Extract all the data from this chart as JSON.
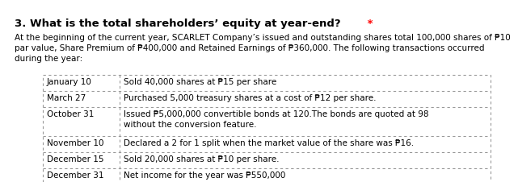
{
  "title": "3. What is the total shareholders’ equity at year-end?",
  "title_star": " *",
  "intro_lines": [
    "At the beginning of the current year, SCARLET Company’s issued and outstanding shares total 100,000 shares of ₱10",
    "par value, Share Premium of ₱400,000 and Retained Earnings of ₱360,000. The following transactions occurred",
    "during the year:"
  ],
  "table_rows": [
    [
      "January 10",
      "Sold 40,000 shares at ₱15 per share"
    ],
    [
      "March 27",
      "Purchased 5,000 treasury shares at a cost of ₱12 per share."
    ],
    [
      "October 31",
      "Issued ₱5,000,000 convertible bonds at 120.The bonds are quoted at 98\nwithout the conversion feature."
    ],
    [
      "November 10",
      "Declared a 2 for 1 split when the market value of the share was ₱16."
    ],
    [
      "December 15",
      "Sold 20,000 shares at ₱10 per share."
    ],
    [
      "December 31",
      "Net income for the year was ₱550,000"
    ]
  ],
  "bg_color": "#ffffff",
  "title_color": "#000000",
  "star_color": "#ff0000",
  "text_color": "#000000",
  "border_color": "#999999",
  "title_fontsize": 9.5,
  "body_fontsize": 7.5,
  "table_fontsize": 7.5
}
